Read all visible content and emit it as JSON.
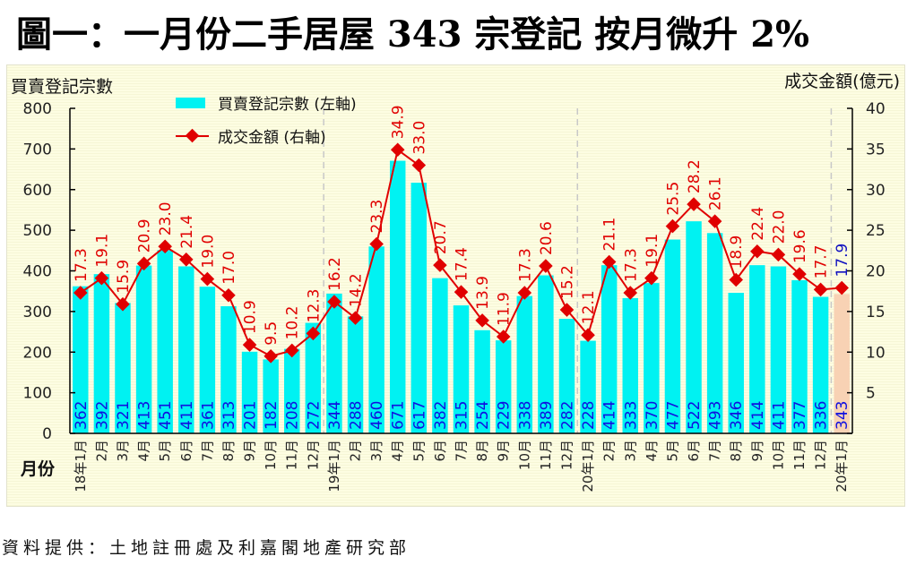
{
  "title": "圖一：一月份二手居屋 343 宗登記  按月微升 2%",
  "source": "資料提供：土地註冊處及利嘉閣地產研究部",
  "colors": {
    "bar": "#00f2f2",
    "bar_highlight": "#f8d2b4",
    "line": "#e00000",
    "bar_label": "#1010e0",
    "line_label": "#e00000",
    "line_label_highlight": "#1010c0",
    "divider": "#c8c8c8"
  },
  "chart_data": {
    "type": "bar+line",
    "title": "圖一：一月份二手居屋 343 宗登記  按月微升 2%",
    "xlabel": "月份",
    "ylabel_left": "買賣登記宗數",
    "ylabel_right": "成交金額(億元)",
    "ylim_left": [
      0,
      800
    ],
    "yticks_left": [
      "0",
      "100",
      "200",
      "300",
      "400",
      "500",
      "600",
      "700",
      "800"
    ],
    "ylim_right": [
      0,
      40
    ],
    "yticks_right": [
      "",
      "5",
      "10",
      "15",
      "20",
      "25",
      "30",
      "35",
      "40"
    ],
    "legend": [
      {
        "name": "買賣登記宗數 (左軸)",
        "type": "bar"
      },
      {
        "name": "成交金額 (右軸)",
        "type": "line"
      }
    ],
    "legend_position": "top-left",
    "categories": [
      "18年1月",
      "2月",
      "3月",
      "4月",
      "5月",
      "6月",
      "7月",
      "8月",
      "9月",
      "10月",
      "11月",
      "12月",
      "19年1月",
      "2月",
      "3月",
      "4月",
      "5月",
      "6月",
      "7月",
      "8月",
      "9月",
      "10月",
      "11月",
      "12月",
      "20年1月",
      "2月",
      "3月",
      "4月",
      "5月",
      "6月",
      "7月",
      "8月",
      "9月",
      "10月",
      "11月",
      "12月",
      "20年1月"
    ],
    "year_dividers_after_index": [
      11,
      23,
      35
    ],
    "highlight_index": 36,
    "series": [
      {
        "name": "買賣登記宗數 (左軸)",
        "axis": "left",
        "type": "bar",
        "values": [
          362,
          392,
          321,
          413,
          451,
          411,
          361,
          313,
          201,
          182,
          208,
          272,
          344,
          288,
          460,
          671,
          617,
          382,
          315,
          254,
          229,
          338,
          389,
          282,
          228,
          414,
          333,
          370,
          477,
          522,
          493,
          346,
          414,
          411,
          377,
          336,
          343
        ]
      },
      {
        "name": "成交金額 (右軸)",
        "axis": "right",
        "type": "line",
        "values": [
          17.3,
          19.1,
          15.9,
          20.9,
          23.0,
          21.4,
          19.0,
          17.0,
          10.9,
          9.5,
          10.2,
          12.3,
          16.2,
          14.2,
          23.3,
          34.9,
          33.0,
          20.7,
          17.4,
          13.9,
          11.9,
          17.3,
          20.6,
          15.2,
          12.1,
          21.1,
          17.3,
          19.1,
          25.5,
          28.2,
          26.1,
          18.9,
          22.4,
          22.0,
          19.6,
          17.7,
          17.9
        ]
      }
    ]
  }
}
